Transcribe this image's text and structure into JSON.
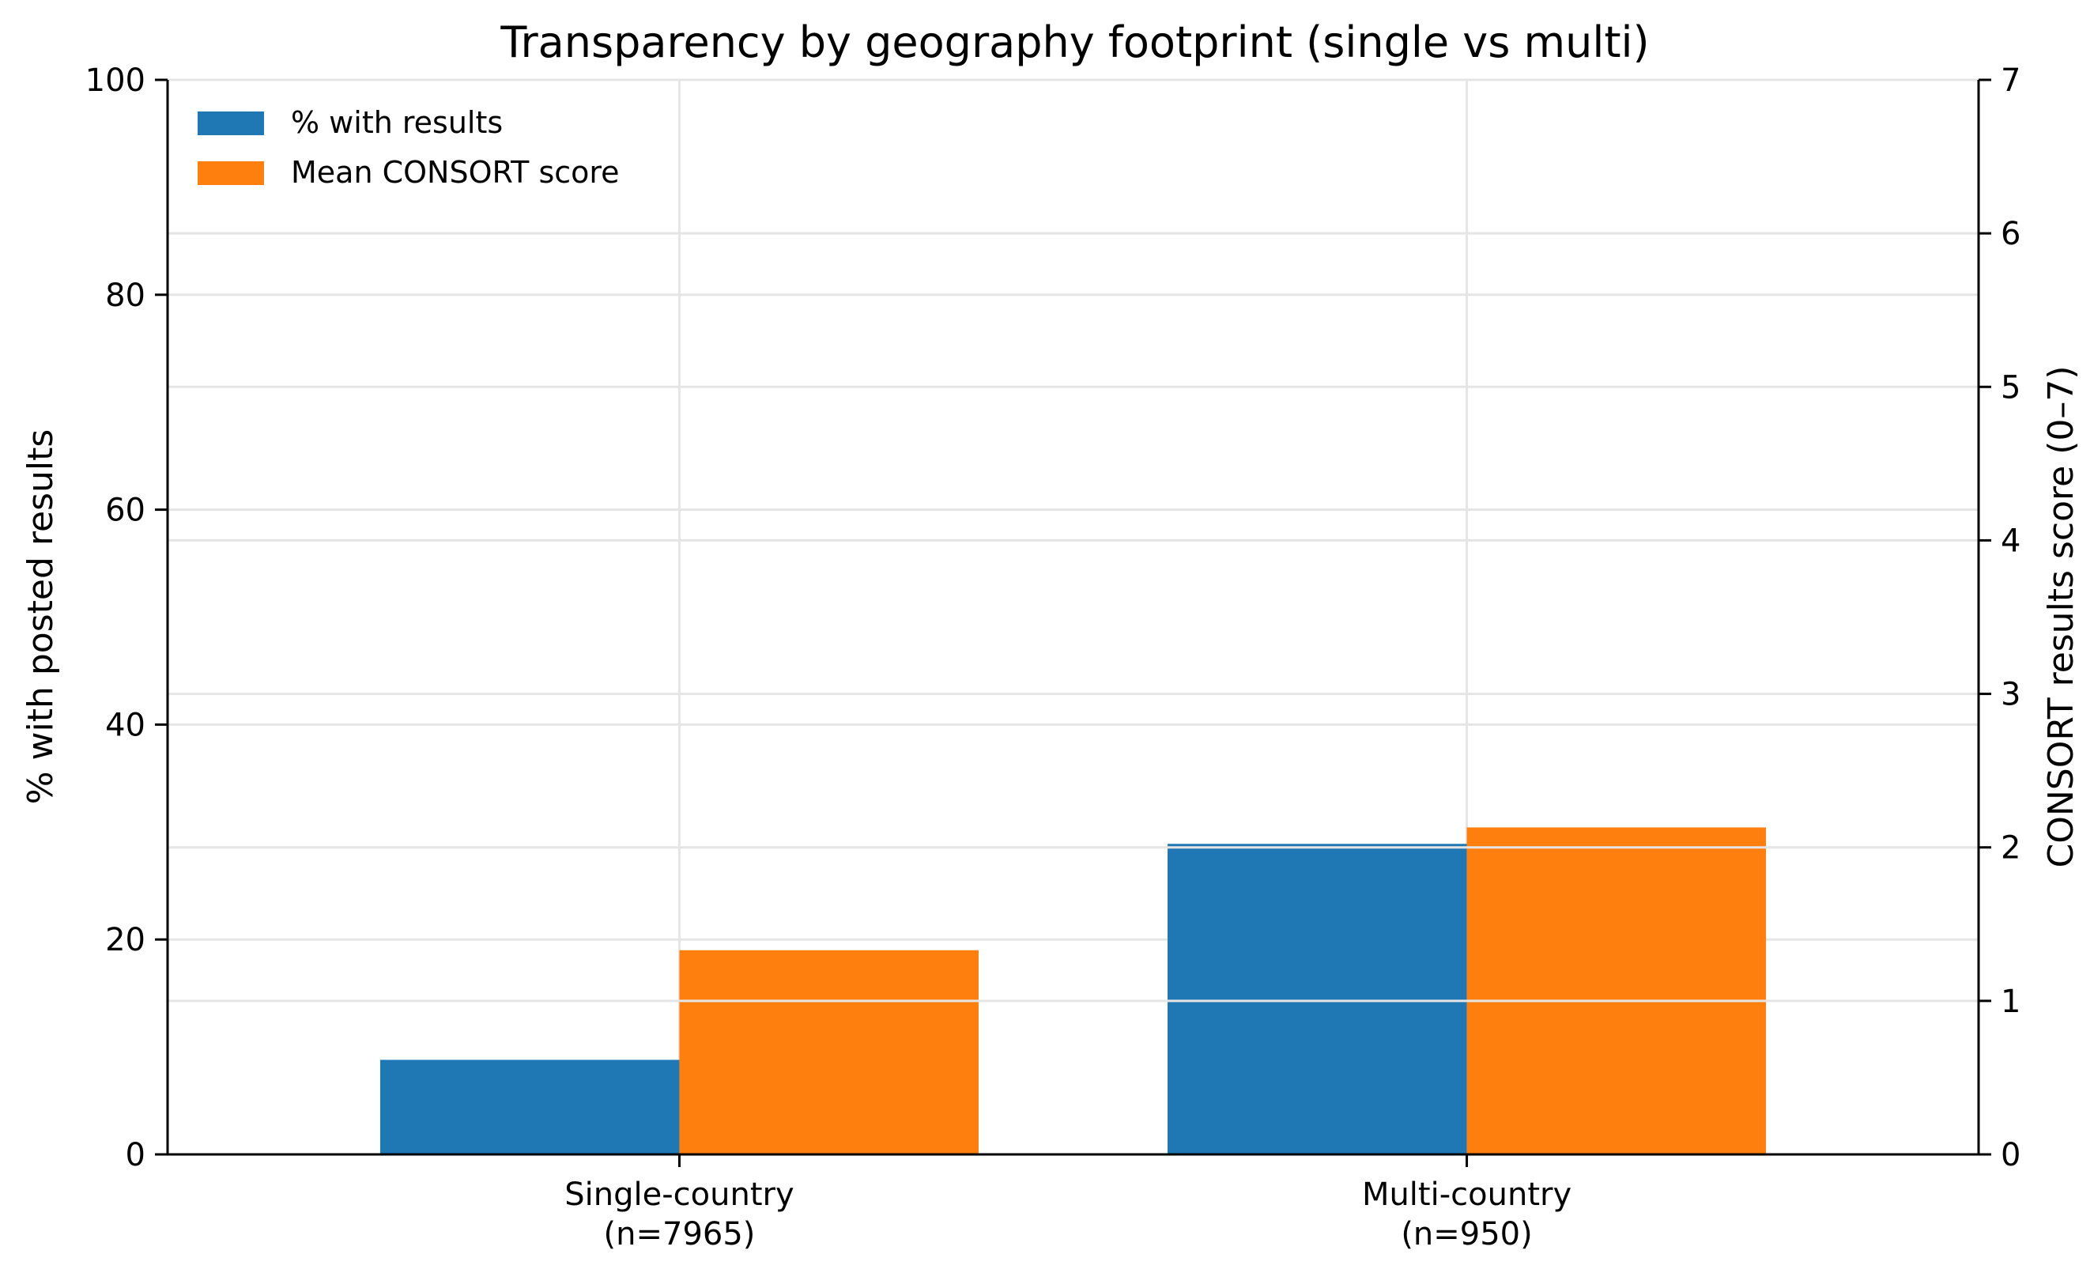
{
  "chart_data": {
    "type": "bar",
    "title": "Transparency by geography footprint (single vs multi)",
    "categories": [
      [
        "Single-country",
        "(n=7965)"
      ],
      [
        "Multi-country",
        "(n=950)"
      ]
    ],
    "ylabel_left": "% with posted results",
    "ylabel_right": "CONSORT results score (0–7)",
    "ylim_left": [
      0,
      100
    ],
    "ylim_right": [
      0,
      7
    ],
    "yticks_left": [
      "0",
      "20",
      "40",
      "60",
      "80",
      "100"
    ],
    "yticks_right": [
      "0",
      "1",
      "2",
      "3",
      "4",
      "5",
      "6",
      "7"
    ],
    "grid": true,
    "legend_position": "top-left",
    "series": [
      {
        "name": "% with results",
        "axis": "left",
        "color": "#1f77b4",
        "values": [
          8.8,
          28.9
        ]
      },
      {
        "name": "Mean CONSORT score",
        "axis": "right",
        "color": "#ff7f0e",
        "values": [
          1.33,
          2.13
        ]
      }
    ]
  }
}
